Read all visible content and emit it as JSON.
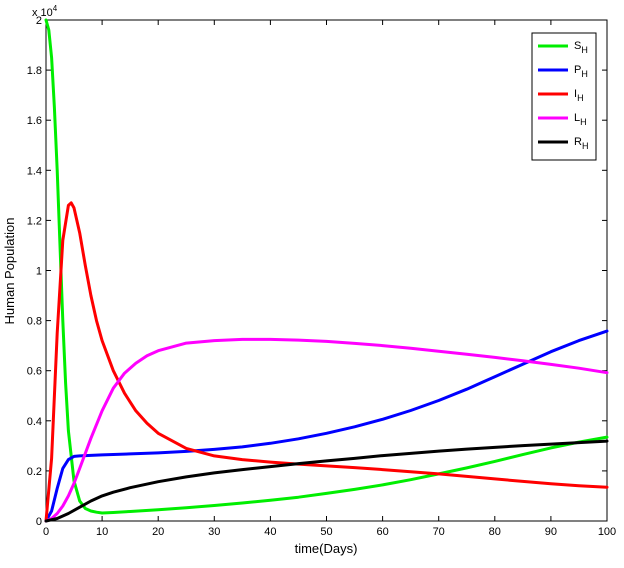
{
  "chart_data": {
    "type": "line",
    "title": "",
    "xlabel": "time(Days)",
    "ylabel": "Human Population",
    "y_exponent_label": "x 10",
    "y_exponent_power": "4",
    "xlim": [
      0,
      100
    ],
    "ylim": [
      0,
      20000
    ],
    "x_ticks": [
      0,
      10,
      20,
      30,
      40,
      50,
      60,
      70,
      80,
      90,
      100
    ],
    "x_tick_labels": [
      "0",
      "10",
      "20",
      "30",
      "40",
      "50",
      "60",
      "70",
      "80",
      "90",
      "100"
    ],
    "y_ticks": [
      0,
      2000,
      4000,
      6000,
      8000,
      10000,
      12000,
      14000,
      16000,
      18000,
      20000
    ],
    "y_tick_labels": [
      "0",
      "0.2",
      "0.4",
      "0.6",
      "0.8",
      "1",
      "1.2",
      "1.4",
      "1.6",
      "1.8",
      "2"
    ],
    "grid": false,
    "legend_position": "top-right",
    "series": [
      {
        "name": "S",
        "subscript": "H",
        "color": "#00ee00",
        "x": [
          0,
          0.5,
          1,
          1.5,
          2,
          2.5,
          3,
          3.5,
          4,
          5,
          6,
          7,
          8,
          9,
          10,
          12,
          15,
          20,
          25,
          30,
          35,
          40,
          45,
          50,
          55,
          60,
          65,
          70,
          75,
          80,
          85,
          90,
          95,
          100
        ],
        "y": [
          20000,
          19600,
          18500,
          16500,
          14000,
          11000,
          8000,
          5500,
          3600,
          1600,
          800,
          500,
          400,
          350,
          320,
          340,
          380,
          450,
          530,
          620,
          720,
          830,
          950,
          1100,
          1260,
          1440,
          1650,
          1880,
          2120,
          2380,
          2650,
          2920,
          3150,
          3350
        ]
      },
      {
        "name": "P",
        "subscript": "H",
        "color": "#0000ff",
        "x": [
          0,
          1,
          2,
          3,
          4,
          5,
          6,
          7,
          8,
          10,
          15,
          20,
          25,
          30,
          35,
          40,
          45,
          50,
          55,
          60,
          65,
          70,
          75,
          80,
          85,
          90,
          95,
          100
        ],
        "y": [
          0,
          400,
          1300,
          2100,
          2450,
          2580,
          2600,
          2610,
          2620,
          2640,
          2680,
          2720,
          2780,
          2860,
          2960,
          3100,
          3280,
          3500,
          3760,
          4060,
          4410,
          4810,
          5260,
          5760,
          6260,
          6760,
          7200,
          7580
        ]
      },
      {
        "name": "I",
        "subscript": "H",
        "color": "#ff0000",
        "x": [
          0,
          1,
          2,
          3,
          4,
          4.5,
          5,
          6,
          7,
          8,
          9,
          10,
          12,
          14,
          16,
          18,
          20,
          25,
          30,
          35,
          40,
          45,
          50,
          55,
          60,
          65,
          70,
          75,
          80,
          85,
          90,
          95,
          100
        ],
        "y": [
          0,
          2500,
          7500,
          11200,
          12600,
          12700,
          12500,
          11500,
          10200,
          9000,
          8000,
          7200,
          6000,
          5100,
          4400,
          3900,
          3500,
          2900,
          2600,
          2450,
          2350,
          2270,
          2200,
          2130,
          2050,
          1970,
          1880,
          1780,
          1680,
          1580,
          1490,
          1410,
          1350
        ]
      },
      {
        "name": "L",
        "subscript": "H",
        "color": "#ff00ff",
        "x": [
          0,
          1,
          2,
          3,
          4,
          5,
          6,
          8,
          10,
          12,
          14,
          16,
          18,
          20,
          25,
          30,
          35,
          40,
          45,
          50,
          55,
          60,
          65,
          70,
          75,
          80,
          85,
          90,
          95,
          100
        ],
        "y": [
          0,
          100,
          300,
          600,
          1000,
          1500,
          2100,
          3300,
          4400,
          5300,
          5900,
          6300,
          6600,
          6800,
          7100,
          7200,
          7250,
          7250,
          7220,
          7170,
          7090,
          7000,
          6900,
          6780,
          6660,
          6530,
          6400,
          6250,
          6100,
          5920
        ]
      },
      {
        "name": "R",
        "subscript": "H",
        "color": "#000000",
        "x": [
          0,
          2,
          4,
          6,
          8,
          10,
          12,
          15,
          20,
          25,
          30,
          35,
          40,
          45,
          50,
          55,
          60,
          65,
          70,
          75,
          80,
          85,
          90,
          95,
          100
        ],
        "y": [
          0,
          100,
          300,
          550,
          800,
          1000,
          1150,
          1330,
          1570,
          1760,
          1920,
          2050,
          2170,
          2290,
          2400,
          2500,
          2610,
          2700,
          2790,
          2870,
          2940,
          3010,
          3070,
          3130,
          3190
        ]
      }
    ]
  }
}
